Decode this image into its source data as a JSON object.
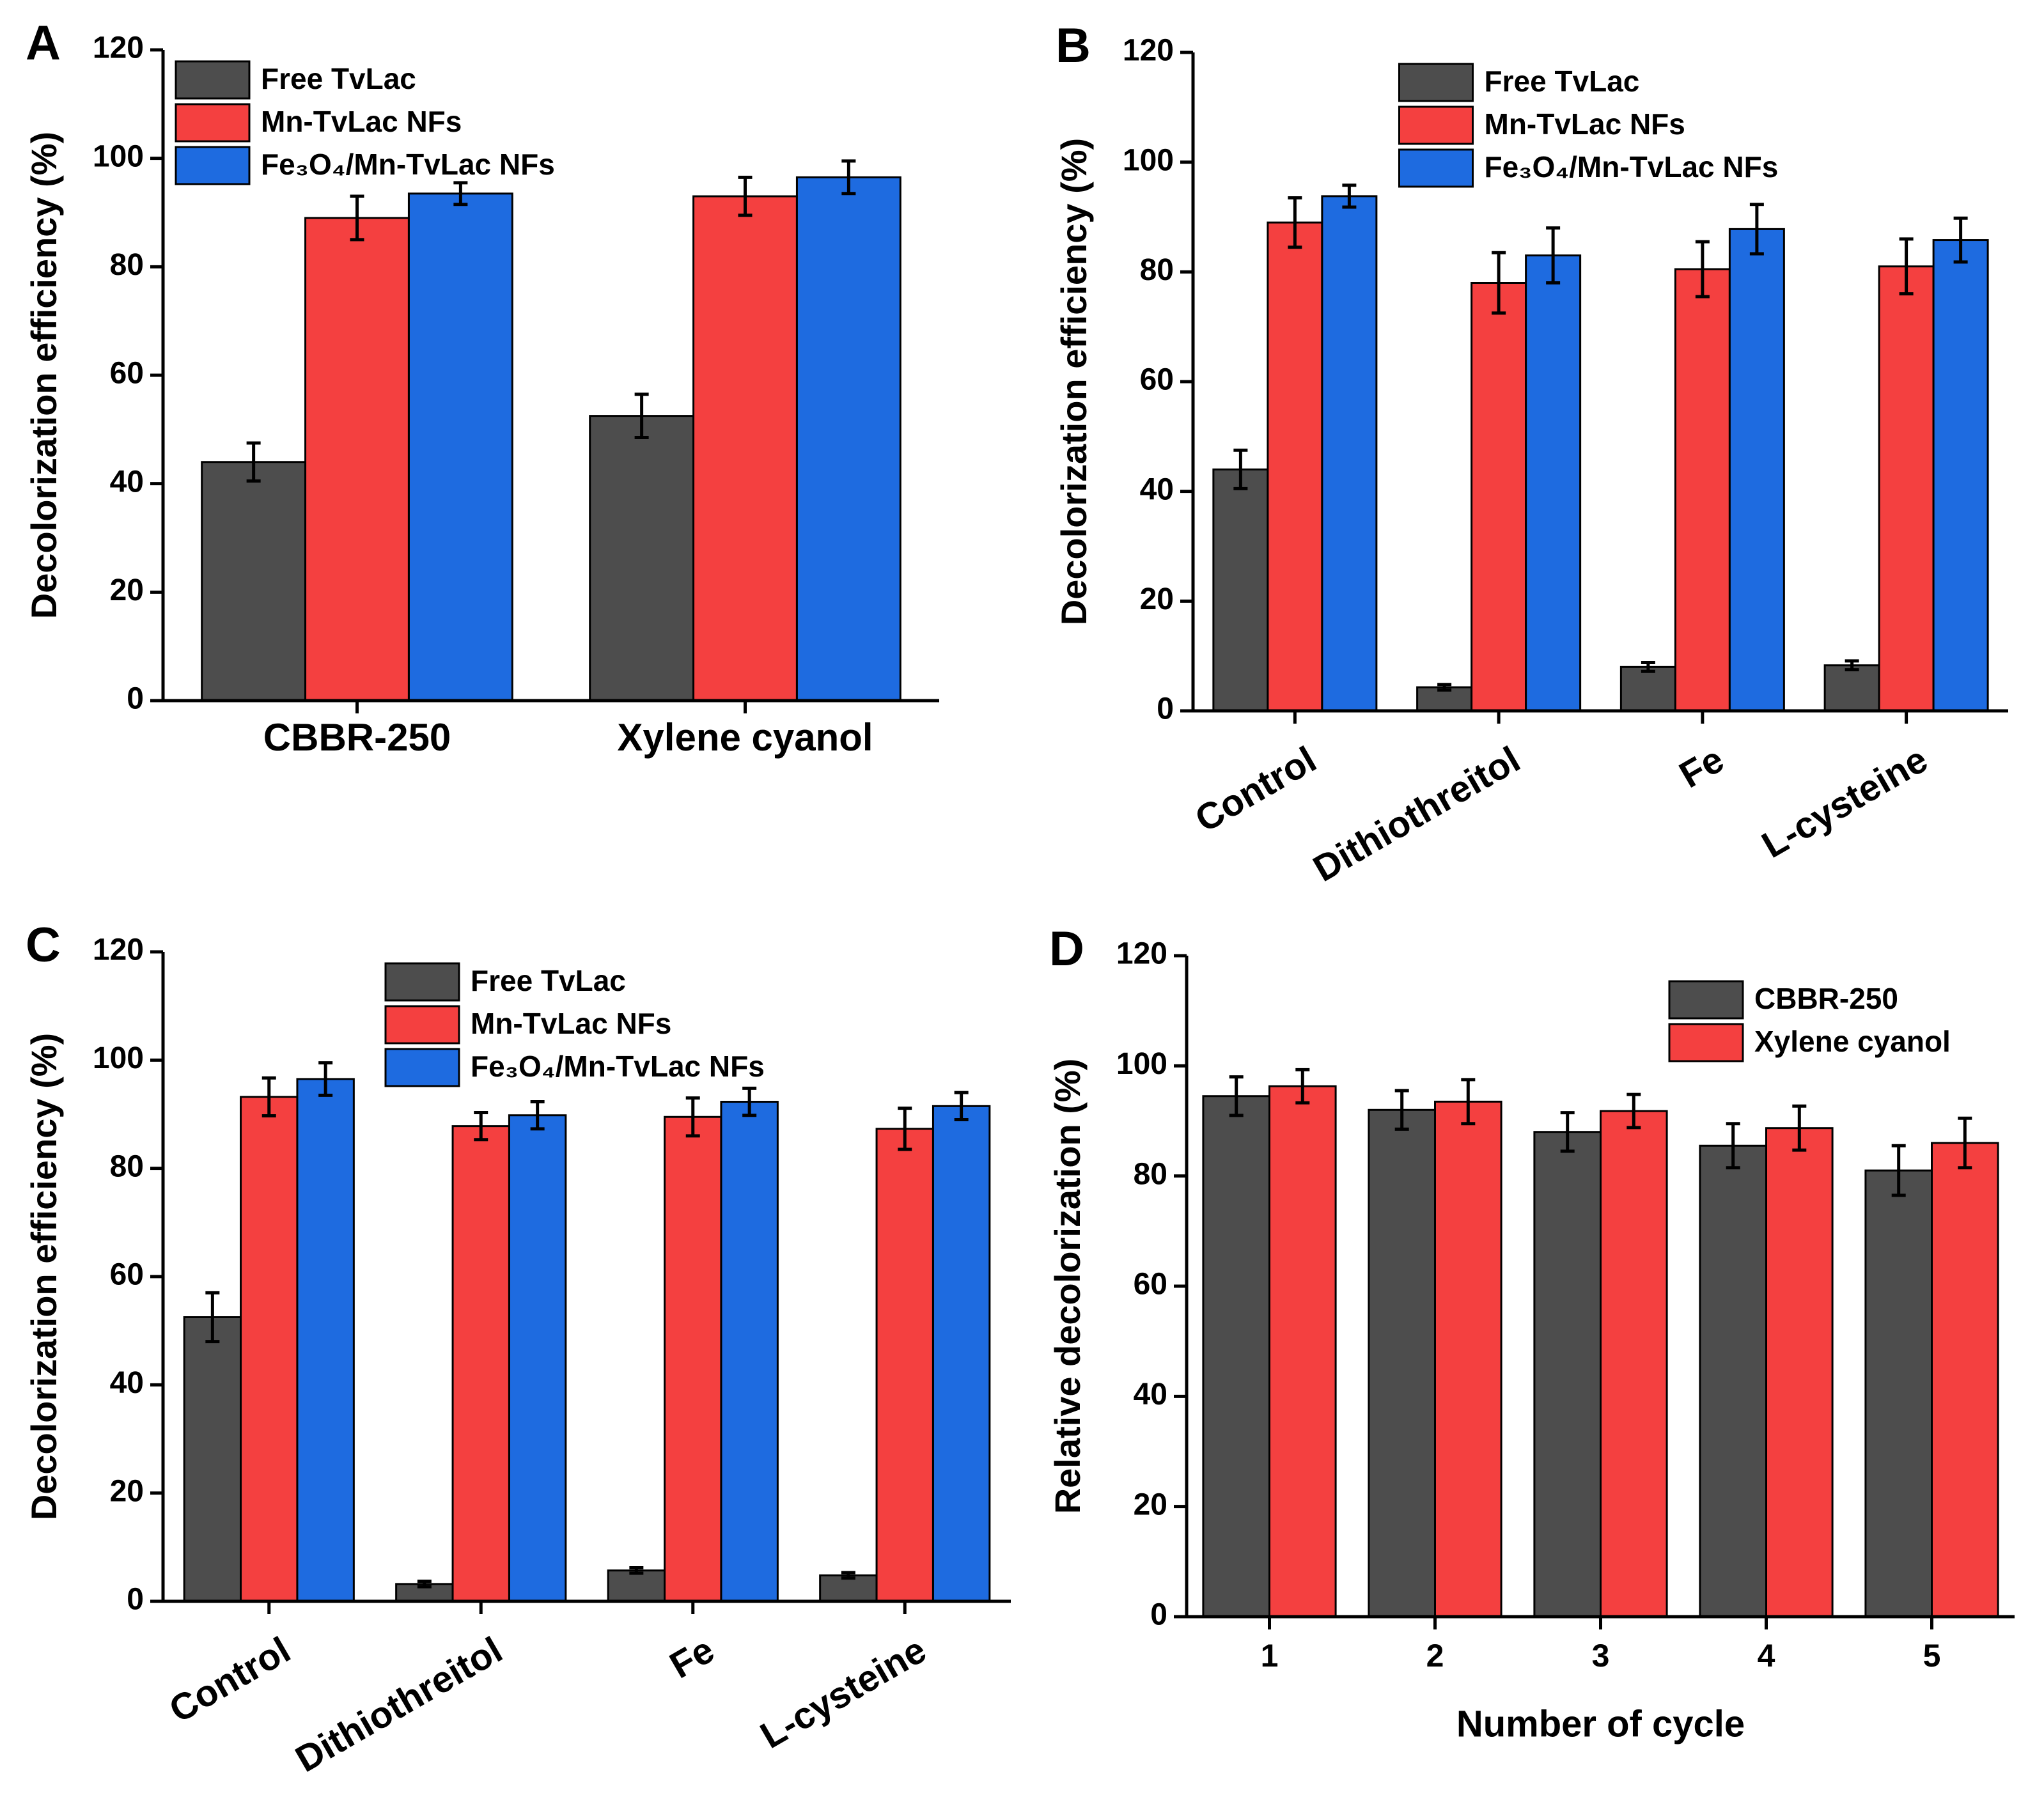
{
  "chart_data": [
    {
      "type": "bar",
      "panel_label": "A",
      "ylabel": "Decolorization efficiency (%)",
      "categories": [
        "CBBR-250",
        "Xylene cyanol"
      ],
      "series": [
        {
          "name": "Free TvLac",
          "color": "#4d4d4d",
          "values": [
            44,
            52.5
          ],
          "errors": [
            3.5,
            4
          ]
        },
        {
          "name": "Mn-TvLac NFs",
          "color": "#f44040",
          "values": [
            89,
            93
          ],
          "errors": [
            4,
            3.5
          ]
        },
        {
          "name": "Fe₃O₄/Mn-TvLac NFs",
          "color": "#1e6be0",
          "values": [
            93.5,
            96.5
          ],
          "errors": [
            2,
            3
          ]
        }
      ],
      "ylim": [
        0,
        120
      ],
      "yticks": [
        0,
        20,
        40,
        60,
        80,
        100,
        120
      ],
      "legend": "upper left",
      "xlabel_rotation": 0
    },
    {
      "type": "bar",
      "panel_label": "B",
      "ylabel": "Decolorization efficiency (%)",
      "categories": [
        "Control",
        "Dithiothreitol",
        "Fe",
        "L-cysteine"
      ],
      "series": [
        {
          "name": "Free TvLac",
          "color": "#4d4d4d",
          "values": [
            44,
            4.3,
            8,
            8.3
          ],
          "errors": [
            3.5,
            0.5,
            0.8,
            0.8
          ]
        },
        {
          "name": "Mn-TvLac NFs",
          "color": "#f44040",
          "values": [
            89,
            78,
            80.5,
            81
          ],
          "errors": [
            4.5,
            5.5,
            5,
            5
          ]
        },
        {
          "name": "Fe₃O₄/Mn-TvLac NFs",
          "color": "#1e6be0",
          "values": [
            93.8,
            83,
            87.8,
            85.8
          ],
          "errors": [
            2,
            5,
            4.5,
            4
          ]
        }
      ],
      "ylim": [
        0,
        120
      ],
      "yticks": [
        0,
        20,
        40,
        60,
        80,
        100,
        120
      ],
      "legend": "upper center",
      "xlabel_rotation": -30
    },
    {
      "type": "bar",
      "panel_label": "C",
      "ylabel": "Decolorization efficiency (%)",
      "categories": [
        "Control",
        "Dithiothreitol",
        "Fe",
        "L-cysteine"
      ],
      "series": [
        {
          "name": "Free TvLac",
          "color": "#4d4d4d",
          "values": [
            52.5,
            3.2,
            5.7,
            4.8
          ],
          "errors": [
            4.5,
            0.5,
            0.5,
            0.5
          ]
        },
        {
          "name": "Mn-TvLac NFs",
          "color": "#f44040",
          "values": [
            93.2,
            87.8,
            89.5,
            87.3
          ],
          "errors": [
            3.5,
            2.5,
            3.5,
            3.8
          ]
        },
        {
          "name": "Fe₃O₄/Mn-TvLac NFs",
          "color": "#1e6be0",
          "values": [
            96.5,
            89.8,
            92.3,
            91.5
          ],
          "errors": [
            3,
            2.5,
            2.5,
            2.5
          ]
        }
      ],
      "ylim": [
        0,
        120
      ],
      "yticks": [
        0,
        20,
        40,
        60,
        80,
        100,
        120
      ],
      "legend": "upper center",
      "xlabel_rotation": -30
    },
    {
      "type": "bar",
      "panel_label": "D",
      "ylabel": "Relative decolorization (%)",
      "xlabel": "Number of cycle",
      "categories": [
        "1",
        "2",
        "3",
        "4",
        "5"
      ],
      "series": [
        {
          "name": "CBBR-250",
          "color": "#4d4d4d",
          "values": [
            94.5,
            92,
            88,
            85.5,
            81
          ],
          "errors": [
            3.5,
            3.5,
            3.5,
            4,
            4.5
          ]
        },
        {
          "name": "Xylene cyanol",
          "color": "#f44040",
          "values": [
            96.3,
            93.5,
            91.8,
            88.7,
            86
          ],
          "errors": [
            3,
            4,
            3,
            4,
            4.5
          ]
        }
      ],
      "ylim": [
        0,
        120
      ],
      "yticks": [
        0,
        20,
        40,
        60,
        80,
        100,
        120
      ],
      "legend": "upper right",
      "xlabel_rotation": 0
    }
  ]
}
